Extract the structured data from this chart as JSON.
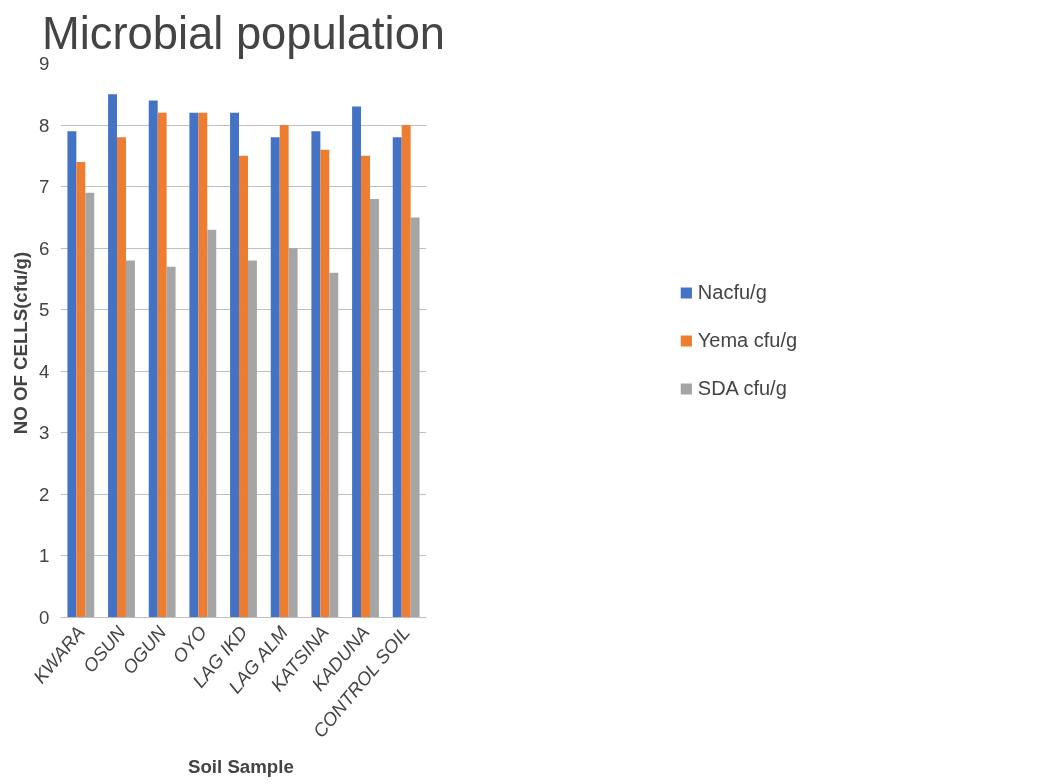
{
  "chart_data": {
    "type": "bar",
    "title": "Microbial population",
    "xlabel": "Soil  Sample",
    "ylabel": "NO OF  CELLS(cfu/g)",
    "categories": [
      "KWARA",
      "OSUN",
      "OGUN",
      "OYO",
      "LAG IKD",
      "LAG ALM",
      "KATSINA",
      "KADUNA",
      "CONTROL SOIL"
    ],
    "series": [
      {
        "name": "Nacfu/g",
        "color": "#4472c4",
        "values": [
          7.9,
          8.5,
          8.4,
          8.2,
          8.2,
          7.8,
          7.9,
          8.3,
          7.8
        ]
      },
      {
        "name": "Yema cfu/g",
        "color": "#ed7d31",
        "values": [
          7.4,
          7.8,
          8.2,
          8.2,
          7.5,
          8.0,
          7.6,
          7.5,
          8.0
        ]
      },
      {
        "name": "SDA cfu/g",
        "color": "#a5a5a5",
        "values": [
          6.9,
          5.8,
          5.7,
          6.3,
          5.8,
          6.0,
          5.6,
          6.8,
          6.5
        ]
      }
    ],
    "ylim": [
      0,
      9
    ],
    "yticks": [
      0,
      1,
      2,
      3,
      4,
      5,
      6,
      7,
      8,
      9
    ],
    "grid": "y",
    "legend": "right"
  }
}
